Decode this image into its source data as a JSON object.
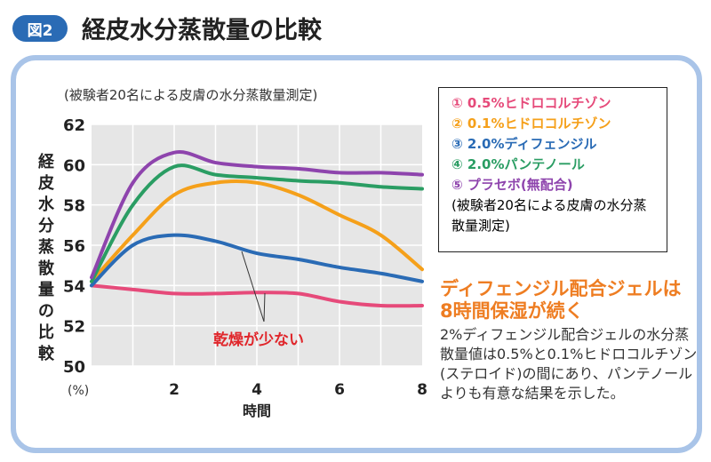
{
  "header": {
    "badge": "図2",
    "title": "経皮水分蒸散量の比較"
  },
  "chart_data": {
    "type": "line",
    "title": "(被験者20名による皮膚の水分蒸散量測定)",
    "xlabel": "時間",
    "ylabel": "経皮水分蒸散量の比較",
    "yunit": "(%)",
    "xlim": [
      0,
      8
    ],
    "ylim": [
      50,
      62
    ],
    "xticks": [
      2,
      4,
      6,
      8
    ],
    "yticks": [
      50,
      52,
      54,
      56,
      58,
      60,
      62
    ],
    "x": [
      0,
      1,
      2,
      3,
      4,
      5,
      6,
      7,
      8
    ],
    "series": [
      {
        "name": "① 0.5%ヒドロコルチゾン",
        "color": "#e64a7a",
        "values": [
          54.0,
          53.8,
          53.6,
          53.6,
          53.65,
          53.6,
          53.2,
          53.0,
          53.0
        ]
      },
      {
        "name": "② 0.1%ヒドロコルチゾン",
        "color": "#f5a01a",
        "values": [
          54.2,
          56.5,
          58.5,
          59.1,
          59.1,
          58.5,
          57.5,
          56.5,
          54.8
        ]
      },
      {
        "name": "③ 2.0%ディフェンジル",
        "color": "#2a6bb5",
        "values": [
          54.0,
          56.0,
          56.5,
          56.2,
          55.6,
          55.3,
          54.9,
          54.6,
          54.2
        ]
      },
      {
        "name": "④ 2.0%パンテノール",
        "color": "#2a9d63",
        "values": [
          54.2,
          58.0,
          59.9,
          59.5,
          59.35,
          59.2,
          59.1,
          58.9,
          58.8
        ]
      },
      {
        "name": "⑤ プラセボ(無配合)",
        "color": "#8e44ad",
        "values": [
          54.4,
          59.1,
          60.6,
          60.1,
          59.9,
          59.8,
          59.6,
          59.6,
          59.5
        ]
      }
    ],
    "annotation": "乾燥が少ない",
    "legend_note": "(被験者20名による皮膚の水分蒸散量測定)"
  },
  "side": {
    "headline": [
      "ディフェンジル配合ジェルは",
      "8時間保湿が続く"
    ],
    "body": "2%ディフェンジル配合ジェルの水分蒸散量値は0.5%と0.1%ヒドロコルチゾン(ステロイド)の間にあり、パンテノールよりも有意な結果を示した。"
  }
}
